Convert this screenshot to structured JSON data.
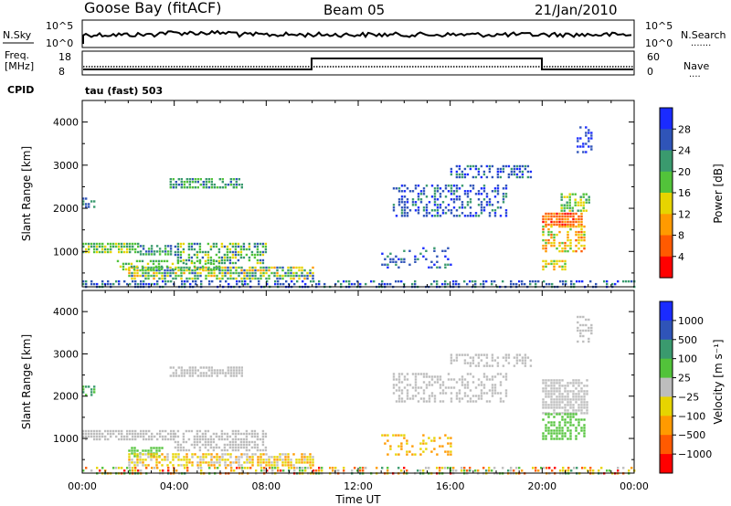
{
  "header": {
    "station": "Goose Bay (fitACF)",
    "beam": "Beam 05",
    "date": "21/Jan/2010"
  },
  "strips": {
    "nsky": {
      "label": "N.Sky",
      "ticks": [
        "10^5",
        "10^0"
      ],
      "right_label": "N.Search",
      "right_ticks": [
        "10^5",
        "10^0"
      ]
    },
    "freq": {
      "label_line1": "Freq.",
      "label_line2": "[MHz]",
      "ticks": [
        "18",
        "8"
      ],
      "right_label": "Nave",
      "right_ticks": [
        "60",
        "0"
      ]
    },
    "cpid": {
      "label": "CPID",
      "value": "tau (fast) 503"
    }
  },
  "chart_data": [
    {
      "type": "heatmap",
      "panel": "power",
      "xlabel": "Time UT",
      "ylabel": "Slant Range [km]",
      "xticks": [
        "00:00",
        "04:00",
        "08:00",
        "12:00",
        "16:00",
        "20:00",
        "00:00"
      ],
      "xlim_hours": [
        0,
        24
      ],
      "ylim": [
        180,
        4500
      ],
      "yticks": [
        1000,
        2000,
        3000,
        4000
      ],
      "colorbar": {
        "label": "Power [dB]",
        "ticks": [
          "4",
          "8",
          "12",
          "16",
          "20",
          "24",
          "28"
        ],
        "colors": [
          "#1a2bff",
          "#2f54b8",
          "#3a9a6e",
          "#52c33a",
          "#e6d400",
          "#ff9a00",
          "#ff5a00",
          "#ff0000"
        ]
      },
      "regions": [
        {
          "t": [
            0.0,
            0.5
          ],
          "r": [
            2050,
            2250
          ],
          "c": [
            1,
            2
          ],
          "d": 0.7
        },
        {
          "t": [
            0.0,
            2.5
          ],
          "r": [
            1000,
            1200
          ],
          "c": [
            2,
            4
          ],
          "d": 0.8
        },
        {
          "t": [
            2.5,
            4.0
          ],
          "r": [
            950,
            1150
          ],
          "c": [
            1,
            3
          ],
          "d": 0.6
        },
        {
          "t": [
            3.8,
            7.0
          ],
          "r": [
            2450,
            2700
          ],
          "c": [
            1,
            3
          ],
          "d": 0.7
        },
        {
          "t": [
            2.0,
            10.0
          ],
          "r": [
            350,
            650
          ],
          "c": [
            1,
            5
          ],
          "d": 0.75
        },
        {
          "t": [
            4.0,
            8.0
          ],
          "r": [
            700,
            1200
          ],
          "c": [
            1,
            4
          ],
          "d": 0.6
        },
        {
          "t": [
            1.5,
            6.0
          ],
          "r": [
            600,
            800
          ],
          "c": [
            2,
            4
          ],
          "d": 0.5
        },
        {
          "t": [
            0.0,
            24.0
          ],
          "r": [
            200,
            330
          ],
          "c": [
            0,
            2
          ],
          "d": 0.45
        },
        {
          "t": [
            13.5,
            18.5
          ],
          "r": [
            1850,
            2550
          ],
          "c": [
            0,
            2
          ],
          "d": 0.45
        },
        {
          "t": [
            16.0,
            19.5
          ],
          "r": [
            2700,
            3000
          ],
          "c": [
            0,
            2
          ],
          "d": 0.5
        },
        {
          "t": [
            20.0,
            21.7
          ],
          "r": [
            1600,
            1900
          ],
          "c": [
            5,
            7
          ],
          "d": 0.85
        },
        {
          "t": [
            20.0,
            21.8
          ],
          "r": [
            1000,
            1600
          ],
          "c": [
            3,
            6
          ],
          "d": 0.6
        },
        {
          "t": [
            20.8,
            22.0
          ],
          "r": [
            1950,
            2350
          ],
          "c": [
            2,
            4
          ],
          "d": 0.6
        },
        {
          "t": [
            20.0,
            21.0
          ],
          "r": [
            600,
            800
          ],
          "c": [
            3,
            6
          ],
          "d": 0.6
        },
        {
          "t": [
            21.5,
            22.2
          ],
          "r": [
            3300,
            3900
          ],
          "c": [
            0,
            1
          ],
          "d": 0.4
        },
        {
          "t": [
            13.0,
            16.0
          ],
          "r": [
            600,
            1100
          ],
          "c": [
            0,
            2
          ],
          "d": 0.25
        }
      ]
    },
    {
      "type": "heatmap",
      "panel": "velocity",
      "xlabel": "Time UT",
      "ylabel": "Slant Range [km]",
      "xticks": [
        "00:00",
        "04:00",
        "08:00",
        "12:00",
        "16:00",
        "20:00",
        "00:00"
      ],
      "xlim_hours": [
        0,
        24
      ],
      "ylim": [
        180,
        4500
      ],
      "yticks": [
        1000,
        2000,
        3000,
        4000
      ],
      "colorbar": {
        "label": "Velocity [m s⁻¹]",
        "ticks": [
          "1000",
          "500",
          "100",
          "25",
          "−25",
          "−100",
          "−500",
          "−1000"
        ],
        "colors": [
          "#1a2bff",
          "#2f54b8",
          "#3a9a6e",
          "#52c33a",
          "#bdbdbd",
          "#e6d400",
          "#ff9a00",
          "#ff5a00",
          "#ff0000"
        ]
      },
      "regions": [
        {
          "t": [
            0.0,
            0.5
          ],
          "r": [
            2050,
            2250
          ],
          "c": [
            2,
            3
          ],
          "d": 0.7
        },
        {
          "t": [
            0.0,
            4.0
          ],
          "r": [
            1000,
            1200
          ],
          "c": [
            4,
            4
          ],
          "d": 0.8
        },
        {
          "t": [
            3.8,
            7.0
          ],
          "r": [
            2450,
            2700
          ],
          "c": [
            4,
            4
          ],
          "d": 0.7
        },
        {
          "t": [
            2.0,
            3.5
          ],
          "r": [
            600,
            800
          ],
          "c": [
            3,
            3
          ],
          "d": 0.6
        },
        {
          "t": [
            4.0,
            8.0
          ],
          "r": [
            700,
            1200
          ],
          "c": [
            4,
            4
          ],
          "d": 0.6
        },
        {
          "t": [
            2.0,
            10.0
          ],
          "r": [
            350,
            650
          ],
          "c": [
            4,
            6
          ],
          "d": 0.7
        },
        {
          "t": [
            0.0,
            24.0
          ],
          "r": [
            200,
            330
          ],
          "c": [
            2,
            8
          ],
          "d": 0.45
        },
        {
          "t": [
            13.5,
            18.5
          ],
          "r": [
            1850,
            2550
          ],
          "c": [
            4,
            4
          ],
          "d": 0.45
        },
        {
          "t": [
            16.0,
            19.5
          ],
          "r": [
            2700,
            3000
          ],
          "c": [
            4,
            4
          ],
          "d": 0.5
        },
        {
          "t": [
            20.0,
            22.0
          ],
          "r": [
            1600,
            2400
          ],
          "c": [
            4,
            4
          ],
          "d": 0.75
        },
        {
          "t": [
            20.0,
            21.8
          ],
          "r": [
            1000,
            1600
          ],
          "c": [
            3,
            3
          ],
          "d": 0.55
        },
        {
          "t": [
            21.5,
            22.2
          ],
          "r": [
            3300,
            3900
          ],
          "c": [
            4,
            4
          ],
          "d": 0.4
        },
        {
          "t": [
            13.0,
            16.0
          ],
          "r": [
            600,
            1100
          ],
          "c": [
            5,
            6
          ],
          "d": 0.25
        }
      ]
    }
  ]
}
